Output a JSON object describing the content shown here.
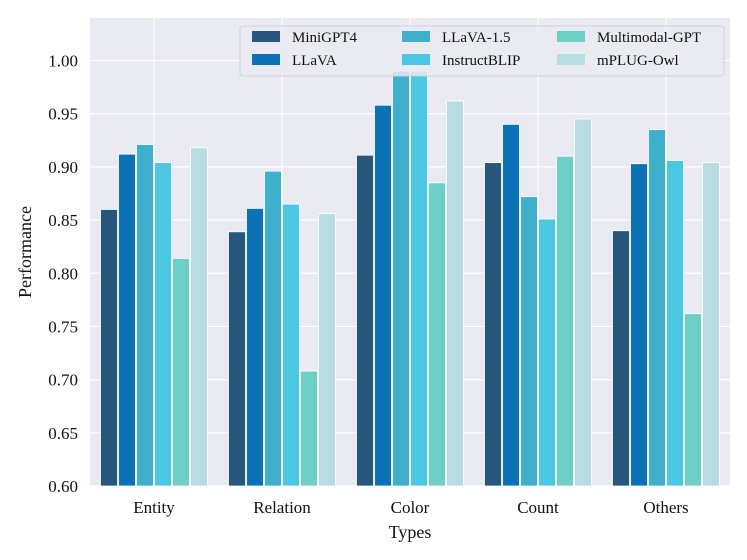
{
  "chart_data": {
    "type": "bar",
    "title": "",
    "xlabel": "Types",
    "ylabel": "Performance",
    "ylim": [
      0.6,
      1.04
    ],
    "yticks": [
      "0.60",
      "0.65",
      "0.70",
      "0.75",
      "0.80",
      "0.85",
      "0.90",
      "0.95",
      "1.00"
    ],
    "categories": [
      "Entity",
      "Relation",
      "Color",
      "Count",
      "Others"
    ],
    "grid": true,
    "legend_position": "top-right",
    "series": [
      {
        "name": "MiniGPT4",
        "color": "#27577d",
        "values": [
          0.86,
          0.839,
          0.911,
          0.904,
          0.84
        ]
      },
      {
        "name": "LLaVA",
        "color": "#0b72b5",
        "values": [
          0.912,
          0.861,
          0.958,
          0.94,
          0.903
        ]
      },
      {
        "name": "LLaVA-1.5",
        "color": "#3fb0cc",
        "values": [
          0.921,
          0.896,
          0.99,
          0.872,
          0.935
        ]
      },
      {
        "name": "InstructBLIP",
        "color": "#4bc7e2",
        "values": [
          0.904,
          0.865,
          0.99,
          0.851,
          0.906
        ]
      },
      {
        "name": "Multimodal-GPT",
        "color": "#6cd0c7",
        "values": [
          0.814,
          0.708,
          0.885,
          0.91,
          0.762
        ]
      },
      {
        "name": "mPLUG-Owl",
        "color": "#b7dde2",
        "values": [
          0.918,
          0.856,
          0.962,
          0.945,
          0.904
        ]
      }
    ]
  }
}
